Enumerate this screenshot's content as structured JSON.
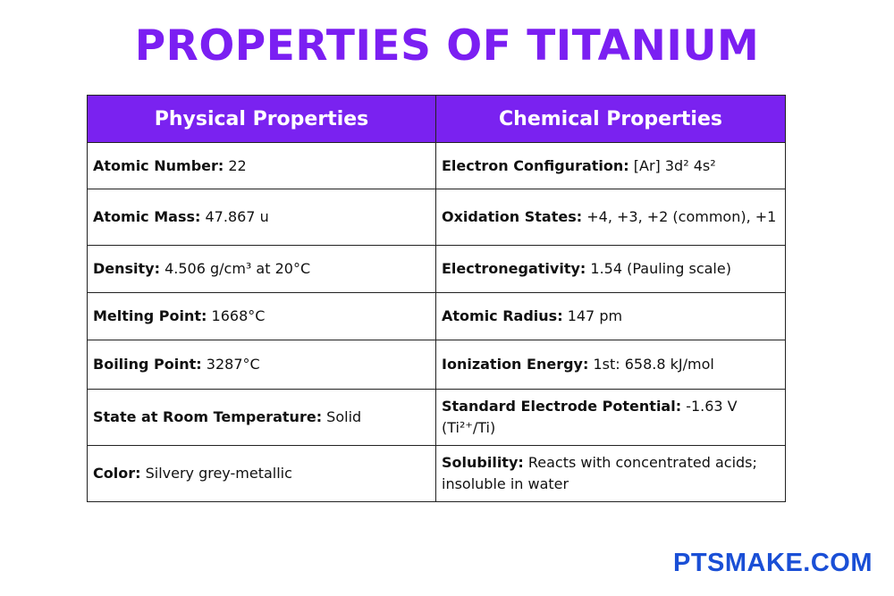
{
  "title": "PROPERTIES OF TITANIUM",
  "table": {
    "headers": [
      "Physical Properties",
      "Chemical Properties"
    ],
    "rows": [
      {
        "physical": {
          "label": "Atomic Number:",
          "value": " 22"
        },
        "chemical": {
          "label": "Electron Configuration:",
          "value": " [Ar] 3d² 4s²"
        }
      },
      {
        "physical": {
          "label": "Atomic Mass:",
          "value": " 47.867 u"
        },
        "chemical": {
          "label": "Oxidation States:",
          "value": " +4, +3, +2 (common), +1"
        }
      },
      {
        "physical": {
          "label": "Density:",
          "value": " 4.506 g/cm³ at 20°C"
        },
        "chemical": {
          "label": "Electronegativity:",
          "value": " 1.54 (Pauling scale)"
        }
      },
      {
        "physical": {
          "label": "Melting Point:",
          "value": " 1668°C"
        },
        "chemical": {
          "label": "Atomic Radius:",
          "value": " 147 pm"
        }
      },
      {
        "physical": {
          "label": "Boiling Point:",
          "value": " 3287°C"
        },
        "chemical": {
          "label": "Ionization Energy:",
          "value": " 1st: 658.8 kJ/mol"
        }
      },
      {
        "physical": {
          "label": "State at Room Temperature:",
          "value": " Solid"
        },
        "chemical": {
          "label": "Standard Electrode Potential:",
          "value": " -1.63 V (Ti²⁺/Ti)"
        }
      },
      {
        "physical": {
          "label": "Color:",
          "value": " Silvery grey-metallic"
        },
        "chemical": {
          "label": "Solubility:",
          "value": " Reacts with concentrated acids; insoluble in water"
        }
      }
    ]
  },
  "brand": "PTSMAKE.COM",
  "colors": {
    "title": "#7b1ff2",
    "header_bg": "#7a22f0",
    "header_text": "#ffffff",
    "brand": "#1a4fd6"
  }
}
